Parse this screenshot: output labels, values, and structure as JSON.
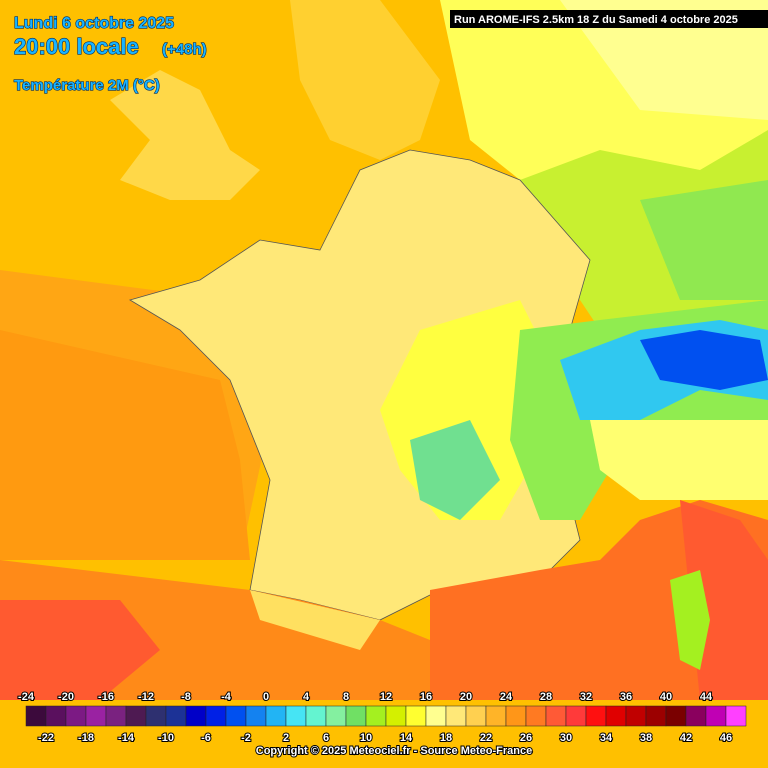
{
  "header": {
    "date": "Lundi 6 octobre 2025",
    "time": "20:00 locale",
    "lead": "(+48h)",
    "parameter": "Température 2M (°C)",
    "run": "Run AROME-IFS 2.5km 18 Z du Samedi 4 octobre 2025"
  },
  "legend": {
    "values": [
      -24,
      -22,
      -20,
      -18,
      -16,
      -14,
      -12,
      -10,
      -8,
      -6,
      -4,
      -2,
      0,
      2,
      4,
      6,
      8,
      10,
      12,
      14,
      16,
      18,
      20,
      22,
      24,
      26,
      28,
      30,
      32,
      34,
      36,
      38,
      40,
      42,
      44,
      46
    ],
    "colors": [
      "#3c0a3c",
      "#5a105e",
      "#7c1a84",
      "#9a22a2",
      "#7a2280",
      "#4e1a52",
      "#2e3070",
      "#1c3296",
      "#0000c8",
      "#0020e6",
      "#0050f0",
      "#1482f0",
      "#22b4f4",
      "#46e4f4",
      "#64f4d0",
      "#84f0a0",
      "#70e064",
      "#a4f020",
      "#d4f000",
      "#ffff30",
      "#ffff90",
      "#ffe878",
      "#ffd050",
      "#ffb428",
      "#ff9618",
      "#ff7a22",
      "#ff5a36",
      "#ff3a3a",
      "#ff1010",
      "#e00000",
      "#c00000",
      "#9c0000",
      "#7a0000",
      "#8a005e",
      "#c000b4",
      "#ff40ff"
    ]
  },
  "footer": {
    "copyright": "Copyright © 2025 Meteociel.fr - Source Meteo-France"
  }
}
